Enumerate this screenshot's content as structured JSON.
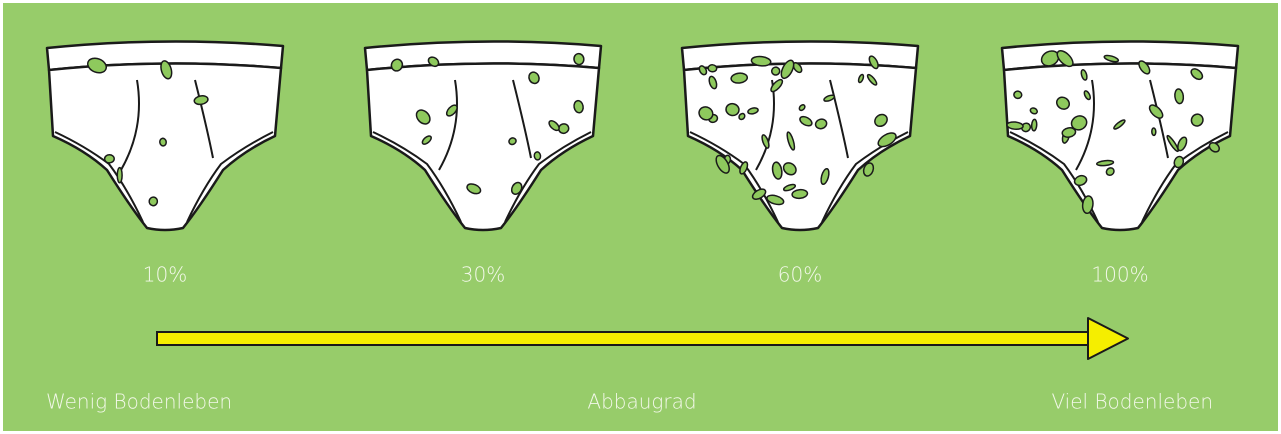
{
  "stages": [
    {
      "label": "10%"
    },
    {
      "label": "30%"
    },
    {
      "label": "60%"
    },
    {
      "label": "100%"
    }
  ],
  "scale": {
    "start_label": "Wenig Bodenleben",
    "center_label": "Abbaugrad",
    "end_label": "Viel Bodenleben"
  }
}
